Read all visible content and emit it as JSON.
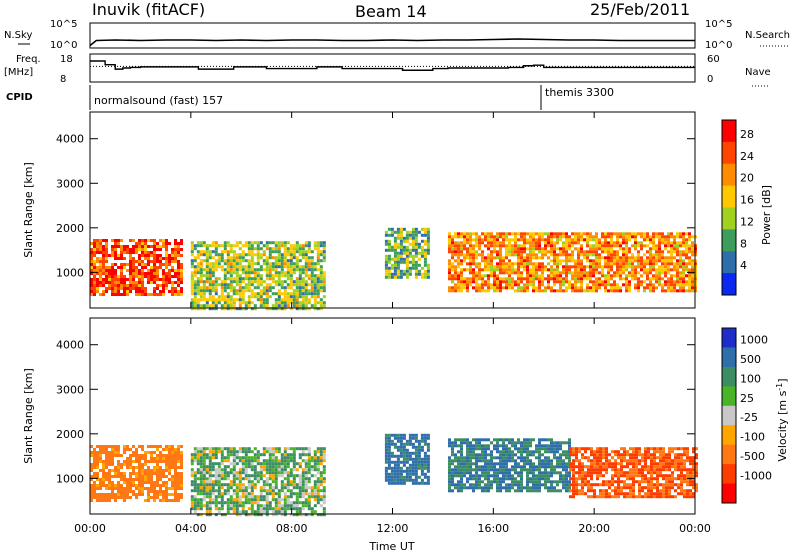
{
  "header": {
    "station": "Inuvik (fitACF)",
    "beam": "Beam 14",
    "date": "25/Feb/2011"
  },
  "strip_labels": {
    "nsky": "N.Sky",
    "nsky_ticks": [
      "10^5",
      "10^0"
    ],
    "nsearch": "N.Search",
    "nsearch_ticks": [
      "10^5",
      "10^0"
    ],
    "freq_line1": "Freq.",
    "freq_line2": "[MHz]",
    "freq_ticks": [
      "18",
      "8"
    ],
    "nave": "Nave",
    "nave_ticks": [
      "60",
      "0"
    ],
    "cpid": "CPID",
    "cpid_1": "normalsound (fast) 157",
    "cpid_2": "themis 3300"
  },
  "xaxis": {
    "label": "Time UT",
    "ticks": [
      "00:00",
      "04:00",
      "08:00",
      "12:00",
      "16:00",
      "20:00",
      "00:00"
    ]
  },
  "power_colorbar": {
    "label": "Power [dB]",
    "ticks": [
      "28",
      "24",
      "20",
      "16",
      "12",
      "8",
      "4"
    ],
    "colors": [
      "#ff0000",
      "#ff4500",
      "#ff8c00",
      "#ffc800",
      "#a0d020",
      "#3c9e5a",
      "#2e6eaa",
      "#0a28f0"
    ]
  },
  "velocity_colorbar": {
    "label_main": "Velocity [m s",
    "label_exp": "-1",
    "label_end": "]",
    "ticks": [
      "1000",
      "500",
      "100",
      "25",
      "-25",
      "-100",
      "-500",
      "-1000"
    ],
    "colors": [
      "#1f2ec8",
      "#2e6eaa",
      "#3c8c64",
      "#4ab428",
      "#c8c8c8",
      "#ffa500",
      "#ff7814",
      "#ff3c00",
      "#ff0000"
    ]
  },
  "chart_data": [
    {
      "type": "line",
      "panel": "noise",
      "x_range_hours": [
        0,
        24
      ],
      "series": [
        {
          "name": "N.Sky",
          "x": [
            0,
            0.25,
            1,
            2,
            3,
            4,
            5,
            6,
            7,
            8,
            9,
            10,
            11,
            12,
            13,
            14,
            15,
            16,
            17,
            18,
            19,
            20,
            21,
            22,
            23,
            24
          ],
          "y": [
            0.5,
            1.5,
            1.6,
            1.5,
            1.6,
            1.6,
            1.5,
            1.6,
            1.5,
            1.6,
            1.6,
            1.5,
            1.5,
            1.6,
            1.5,
            1.6,
            1.6,
            1.7,
            1.8,
            1.7,
            1.6,
            1.6,
            1.5,
            1.5,
            1.5,
            1.5
          ]
        }
      ]
    },
    {
      "type": "line",
      "panel": "freq_nave",
      "x_range_hours": [
        0,
        24
      ],
      "series": [
        {
          "name": "Freq.",
          "x": [
            0,
            0.3,
            0.6,
            1.0,
            1.3,
            1.6,
            2.0,
            4.0,
            4.3,
            5.4,
            5.7,
            6.6,
            7.0,
            9.0,
            10.0,
            12.0,
            12.4,
            13.2,
            13.6,
            14.2,
            16.6,
            17.2,
            17.6,
            18.0,
            19.0,
            20.0,
            21.0,
            22.0,
            24.0
          ],
          "y": [
            15.5,
            15.5,
            14.2,
            12.6,
            13.0,
            13.2,
            13.4,
            13.4,
            12.6,
            12.6,
            13.4,
            13.4,
            12.8,
            13.4,
            12.8,
            12.8,
            12.2,
            12.2,
            12.8,
            13.0,
            13.2,
            13.8,
            14.0,
            13.2,
            13.2,
            13.2,
            13.2,
            13.2,
            13.2
          ]
        },
        {
          "name": "Nave",
          "x": [
            0,
            24
          ],
          "y": [
            13.6,
            13.6
          ]
        }
      ]
    },
    {
      "type": "heatmap",
      "panel": "power",
      "x_range_hours": [
        0,
        24
      ],
      "ylabel": "Slant Range [km]",
      "ylim": [
        200,
        4600
      ],
      "yticks": [
        1000,
        2000,
        3000,
        4000
      ],
      "colorbar_label": "Power [dB]",
      "echo_regions": [
        {
          "t0": 0.0,
          "t1": 3.6,
          "r0": 500,
          "r1": 1750,
          "level": 26
        },
        {
          "t0": 4.0,
          "t1": 9.3,
          "r0": 200,
          "r1": 1700,
          "level": 14
        },
        {
          "t0": 11.7,
          "t1": 13.4,
          "r0": 900,
          "r1": 2000,
          "level": 12
        },
        {
          "t0": 14.2,
          "t1": 24.0,
          "r0": 600,
          "r1": 1900,
          "level": 22
        }
      ]
    },
    {
      "type": "heatmap",
      "panel": "velocity",
      "x_range_hours": [
        0,
        24
      ],
      "ylabel": "Slant Range [km]",
      "ylim": [
        200,
        4600
      ],
      "yticks": [
        1000,
        2000,
        3000,
        4000
      ],
      "colorbar_label": "Velocity [m s-1]",
      "echo_regions": [
        {
          "t0": 0.0,
          "t1": 3.6,
          "r0": 500,
          "r1": 1750,
          "level": -200
        },
        {
          "t0": 4.0,
          "t1": 9.3,
          "r0": 200,
          "r1": 1700,
          "level": 80
        },
        {
          "t0": 11.7,
          "t1": 13.4,
          "r0": 900,
          "r1": 2000,
          "level": 600
        },
        {
          "t0": 14.2,
          "t1": 19.0,
          "r0": 700,
          "r1": 1900,
          "level": 500
        },
        {
          "t0": 19.0,
          "t1": 24.0,
          "r0": 600,
          "r1": 1700,
          "level": -500
        }
      ]
    }
  ]
}
